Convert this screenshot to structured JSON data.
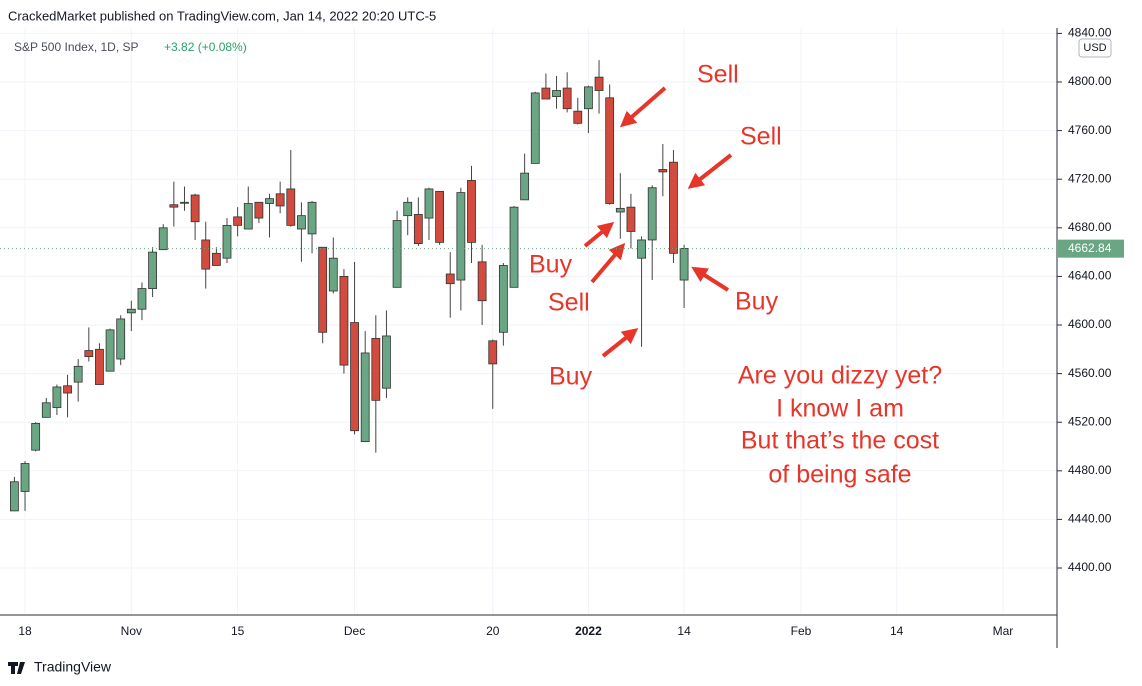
{
  "chart_data": {
    "type": "candlestick",
    "header": "CrackedMarket published on TradingView.com, Jan 14, 2022 20:20 UTC-5",
    "symbol": "S&P 500 Index, 1D, SP",
    "change": "+3.82 (+0.08%)",
    "currency": "USD",
    "footer": "TradingView",
    "categories": [
      null,
      "18",
      null,
      null,
      null,
      null,
      null,
      null,
      null,
      null,
      null,
      "Nov",
      null,
      null,
      null,
      null,
      null,
      null,
      null,
      null,
      null,
      "15",
      null,
      null,
      null,
      null,
      null,
      null,
      null,
      null,
      null,
      null,
      "Dec",
      null,
      null,
      null,
      null,
      null,
      null,
      null,
      null,
      null,
      null,
      null,
      null,
      "20",
      null,
      null,
      null,
      null,
      null,
      null,
      null,
      null,
      "2022",
      null,
      null,
      null,
      null,
      null,
      null,
      null,
      null,
      "14",
      null,
      null,
      null,
      null,
      null,
      null,
      null,
      null,
      null,
      null,
      "Feb",
      null,
      null,
      null,
      null,
      null,
      null,
      null,
      null,
      "14",
      null,
      null,
      null,
      null,
      null,
      null,
      null,
      null,
      null,
      "Mar",
      null,
      null,
      null,
      null,
      null
    ],
    "open": [
      4447,
      4463,
      4497,
      4524,
      4532,
      4550,
      4553,
      4579,
      4580,
      4562,
      4572,
      4610,
      4613,
      4630,
      4662,
      4699,
      4701,
      4707,
      4670,
      4659,
      4655,
      4689,
      4679,
      4701,
      4700,
      4708,
      4712,
      4679,
      4675,
      4664,
      4628,
      4640,
      4602,
      4504,
      4589,
      4548,
      4631,
      4690,
      4691,
      4688,
      4710,
      4642,
      4637,
      4719,
      4652,
      4587,
      4594,
      4631,
      4703,
      4733,
      4795,
      4788,
      4795,
      4776,
      4778,
      4804,
      4787,
      4693,
      4697,
      4655,
      4670,
      4728,
      4734,
      4637,
      null,
      null,
      null,
      null,
      null,
      null,
      null,
      null,
      null,
      null,
      null,
      null,
      null,
      null,
      null,
      null,
      null,
      null,
      null,
      null,
      null,
      null,
      null,
      null,
      null,
      null,
      null,
      null,
      null,
      null,
      null,
      null,
      null,
      null,
      null
    ],
    "high": [
      4475,
      4488,
      4520,
      4540,
      4551,
      4559,
      4572,
      4598,
      4585,
      4597,
      4608,
      4620,
      4635,
      4664,
      4683,
      4718,
      4714,
      4708,
      4685,
      4664,
      4688,
      4697,
      4714,
      4701,
      4708,
      4718,
      4744,
      4701,
      4702,
      4664,
      4672,
      4646,
      4652,
      4595,
      4608,
      4612,
      4694,
      4705,
      4705,
      4713,
      4710,
      4660,
      4713,
      4731,
      4666,
      4588,
      4651,
      4698,
      4741,
      4792,
      4807,
      4805,
      4808,
      4787,
      4797,
      4818,
      4798,
      4725,
      4708,
      4673,
      4715,
      4749,
      4744,
      4666,
      null,
      null,
      null,
      null,
      null,
      null,
      null,
      null,
      null,
      null,
      null,
      null,
      null,
      null,
      null,
      null,
      null,
      null,
      null,
      null,
      null,
      null,
      null,
      null,
      null,
      null,
      null,
      null,
      null,
      null,
      null,
      null,
      null,
      null,
      null
    ],
    "low": [
      4447,
      4447,
      4496,
      4524,
      4526,
      4524,
      4537,
      4570,
      4551,
      4562,
      4567,
      4595,
      4604,
      4623,
      4662,
      4681,
      4694,
      4670,
      4630,
      4649,
      4651,
      4673,
      4679,
      4684,
      4672,
      4692,
      4681,
      4652,
      4659,
      4585,
      4626,
      4560,
      4510,
      4504,
      4495,
      4540,
      4631,
      4674,
      4665,
      4670,
      4666,
      4606,
      4612,
      4651,
      4600,
      4531,
      4583,
      4631,
      4703,
      4733,
      4786,
      4778,
      4775,
      4765,
      4758,
      4774,
      4699,
      4671,
      4663,
      4582,
      4637,
      4706,
      4651,
      4614,
      null,
      null,
      null,
      null,
      null,
      null,
      null,
      null,
      null,
      null,
      null,
      null,
      null,
      null,
      null,
      null,
      null,
      null,
      null,
      null,
      null,
      null,
      null,
      null,
      null,
      null,
      null,
      null,
      null,
      null,
      null,
      null,
      null,
      null,
      null
    ],
    "close": [
      4471,
      4486,
      4519,
      4536,
      4549,
      4544,
      4566,
      4574,
      4551,
      4596,
      4605,
      4613,
      4630,
      4660,
      4680,
      4697,
      4701,
      4685,
      4646,
      4649,
      4682,
      4682,
      4700,
      4688,
      4704,
      4698,
      4682,
      4690,
      4701,
      4594,
      4655,
      4567,
      4513,
      4577,
      4538,
      4591,
      4686,
      4701,
      4667,
      4712,
      4668,
      4634,
      4709,
      4668,
      4620,
      4568,
      4649,
      4697,
      4725,
      4791,
      4786,
      4793,
      4778,
      4766,
      4796,
      4793,
      4700,
      4696,
      4677,
      4670,
      4713,
      4726,
      4659,
      4663,
      null,
      null,
      null,
      null,
      null,
      null,
      null,
      null,
      null,
      null,
      null,
      null,
      null,
      null,
      null,
      null,
      null,
      null,
      null,
      null,
      null,
      null,
      null,
      null,
      null,
      null,
      null,
      null,
      null,
      null,
      null,
      null,
      null,
      null,
      null
    ],
    "up_color": "#6aa584",
    "down_color": "#d24b3f",
    "last_price": 4662.84,
    "ylim": [
      4361,
      4840
    ],
    "yticks": [
      {
        "value": 4400,
        "label": "4400.00"
      },
      {
        "value": 4440,
        "label": "4440.00"
      },
      {
        "value": 4480,
        "label": "4480.00"
      },
      {
        "value": 4520,
        "label": "4520.00"
      },
      {
        "value": 4560,
        "label": "4560.00"
      },
      {
        "value": 4600,
        "label": "4600.00"
      },
      {
        "value": 4640,
        "label": "4640.00"
      },
      {
        "value": 4680,
        "label": "4680.00"
      },
      {
        "value": 4720,
        "label": "4720.00"
      },
      {
        "value": 4760,
        "label": "4760.00"
      },
      {
        "value": 4800,
        "label": "4800.00"
      },
      {
        "value": 4840,
        "label": "4840.00"
      }
    ],
    "grid": true,
    "annotations": [
      "Sell",
      "Sell",
      "Buy",
      "Sell",
      "Buy",
      "Buy",
      "Are you dizzy yet?",
      "I know I am",
      "But that’s the cost",
      "of being safe"
    ]
  }
}
